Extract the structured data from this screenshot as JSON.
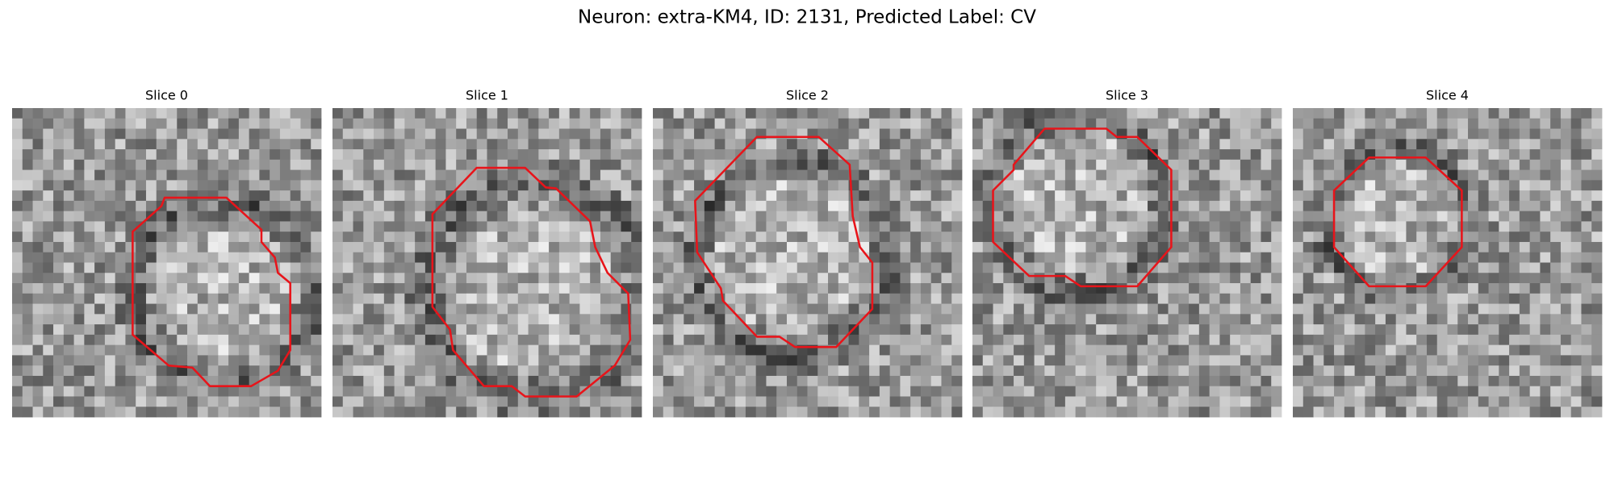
{
  "title": "Neuron: extra-KM4, ID: 2131, Predicted Label: CV",
  "panels": [
    {
      "title": "Slice 0"
    },
    {
      "title": "Slice 1"
    },
    {
      "title": "Slice 2"
    },
    {
      "title": "Slice 3"
    },
    {
      "title": "Slice 4"
    }
  ]
}
